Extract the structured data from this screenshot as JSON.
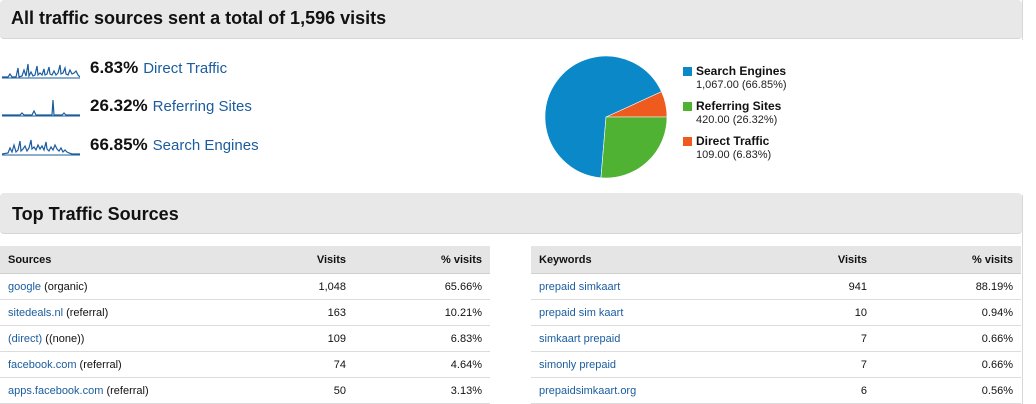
{
  "header": {
    "title": "All traffic sources sent a total of 1,596 visits"
  },
  "traffic_sources": [
    {
      "percent": "6.83%",
      "label": "Direct Traffic",
      "color": "#1a5c9e"
    },
    {
      "percent": "26.32%",
      "label": "Referring Sites",
      "color": "#1a5c9e"
    },
    {
      "percent": "66.85%",
      "label": "Search Engines",
      "color": "#1a5c9e"
    }
  ],
  "chart_data": {
    "type": "pie",
    "series": [
      {
        "name": "Search Engines",
        "value": 1067.0,
        "label": "1,067.00 (66.85%)",
        "color": "#0b88c7"
      },
      {
        "name": "Referring Sites",
        "value": 420.0,
        "label": "420.00 (26.32%)",
        "color": "#4fb232"
      },
      {
        "name": "Direct Traffic",
        "value": 109.0,
        "label": "109.00 (6.83%)",
        "color": "#ef5a1e"
      }
    ],
    "legend_position": "right"
  },
  "top_sources": {
    "title": "Top Traffic Sources"
  },
  "sources_table": {
    "headers": [
      "Sources",
      "Visits",
      "% visits"
    ],
    "rows": [
      {
        "link": "google",
        "medium": "(organic)",
        "visits": "1,048",
        "pct": "65.66%"
      },
      {
        "link": "sitedeals.nl",
        "medium": "(referral)",
        "visits": "163",
        "pct": "10.21%"
      },
      {
        "link": "(direct)",
        "medium": "((none))",
        "visits": "109",
        "pct": "6.83%"
      },
      {
        "link": "facebook.com",
        "medium": "(referral)",
        "visits": "74",
        "pct": "4.64%"
      },
      {
        "link": "apps.facebook.com",
        "medium": "(referral)",
        "visits": "50",
        "pct": "3.13%"
      }
    ]
  },
  "keywords_table": {
    "headers": [
      "Keywords",
      "Visits",
      "% visits"
    ],
    "rows": [
      {
        "keyword": "prepaid simkaart",
        "visits": "941",
        "pct": "88.19%"
      },
      {
        "keyword": "prepaid sim kaart",
        "visits": "10",
        "pct": "0.94%"
      },
      {
        "keyword": "simkaart prepaid",
        "visits": "7",
        "pct": "0.66%"
      },
      {
        "keyword": "simonly prepaid",
        "visits": "7",
        "pct": "0.66%"
      },
      {
        "keyword": "prepaidsimkaart.org",
        "visits": "6",
        "pct": "0.56%"
      }
    ]
  }
}
